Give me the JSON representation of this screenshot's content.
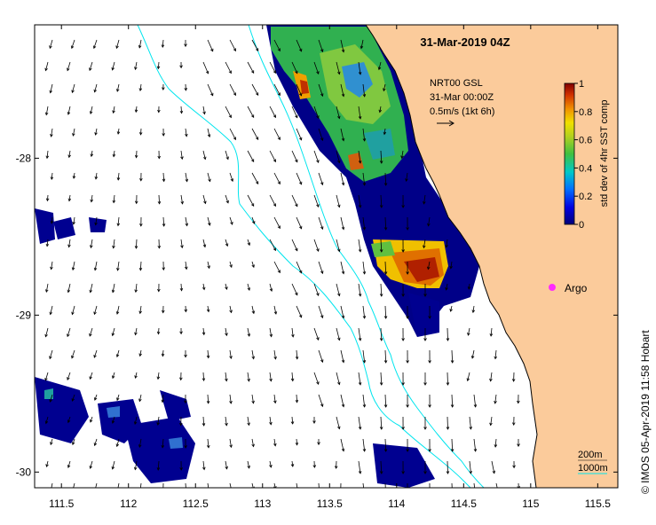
{
  "map": {
    "title": "31-Mar-2019 04Z",
    "x_ticks": [
      111.5,
      112,
      112.5,
      113,
      113.5,
      114,
      114.5,
      115,
      115.5
    ],
    "y_ticks": [
      -28,
      -29,
      -30
    ],
    "x_range": [
      111.3,
      115.65
    ],
    "y_range": [
      -30.1,
      -27.15
    ],
    "colors": {
      "land": "#fbcb9b",
      "ocean": "#ffffff",
      "coastline": "#000000",
      "isobath": "#00e5ee",
      "arrow": "#000000",
      "argo": "#ff2bff"
    }
  },
  "current_legend": {
    "line1": "NRT00 GSL",
    "line2": "31-Mar 00:00Z",
    "line3": "0.5m/s (1kt 6h)"
  },
  "colorbar": {
    "label": "std dev of 4hr SST comp",
    "ticks": [
      "0",
      "0.2",
      "0.4",
      "0.6",
      "0.8",
      "1"
    ],
    "min": 0,
    "max": 1
  },
  "argo": {
    "label": "Argo"
  },
  "isobath_legend": {
    "label_200": "200m",
    "label_1000": "1000m"
  },
  "credit": "© IMOS 05-Apr-2019 11:58 Hobart"
}
